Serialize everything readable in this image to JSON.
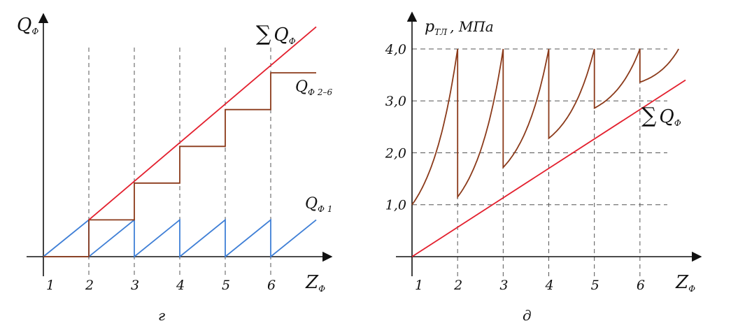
{
  "chart_data": [
    {
      "type": "line",
      "caption": "г",
      "ylabel": "Q",
      "ylabel_sub": "Ф",
      "xlabel": "Z",
      "xlabel_sub": "Ф",
      "categories": [
        "1",
        "2",
        "3",
        "4",
        "5",
        "6"
      ],
      "xlim": [
        1,
        7
      ],
      "ylim": [
        0,
        6.6
      ],
      "colors": {
        "sum": "#e3202e",
        "stair": "#8b3a1a",
        "saw": "#3f7fd6",
        "grid": "#555555"
      },
      "annotations": {
        "sum": {
          "sym": "∑",
          "label": "Q",
          "sub": "Ф"
        },
        "stair": {
          "label": "Q",
          "sub": "Ф 2–6"
        },
        "saw": {
          "label": "Q",
          "sub": "Ф 1"
        }
      },
      "series": [
        {
          "key": "sum",
          "values": [
            [
              2,
              1
            ],
            [
              7,
              6.25
            ]
          ]
        },
        {
          "key": "stair",
          "values": [
            [
              1,
              0
            ],
            [
              2,
              0
            ],
            [
              2,
              1
            ],
            [
              3,
              1
            ],
            [
              3,
              2
            ],
            [
              4,
              2
            ],
            [
              4,
              3
            ],
            [
              5,
              3
            ],
            [
              5,
              4
            ],
            [
              6,
              4
            ],
            [
              6,
              5
            ],
            [
              7,
              5
            ]
          ]
        },
        {
          "key": "saw",
          "values": [
            [
              1,
              0
            ],
            [
              2,
              1
            ],
            [
              2,
              0
            ],
            [
              3,
              1
            ],
            [
              3,
              0
            ],
            [
              4,
              1
            ],
            [
              4,
              0
            ],
            [
              5,
              1
            ],
            [
              5,
              0
            ],
            [
              6,
              1
            ],
            [
              6,
              0
            ],
            [
              7,
              1
            ]
          ]
        }
      ]
    },
    {
      "type": "line",
      "caption": "д",
      "ylabel": "p",
      "ylabel_sub": "ТЛ",
      "ylabel_unit": ", МПа",
      "xlabel": "Z",
      "xlabel_sub": "Ф",
      "categories": [
        "1",
        "2",
        "3",
        "4",
        "5",
        "6"
      ],
      "yticks": [
        "1,0",
        "2,0",
        "3,0",
        "4,0"
      ],
      "ytick_values": [
        1,
        2,
        3,
        4
      ],
      "xlim": [
        1,
        7
      ],
      "ylim": [
        0,
        4.7
      ],
      "colors": {
        "sum": "#e3202e",
        "pressure": "#8b3a1a",
        "grid": "#555555"
      },
      "annotations": {
        "sum": {
          "sym": "∑",
          "label": "Q",
          "sub": "Ф"
        }
      },
      "series": [
        {
          "key": "sum",
          "values": [
            [
              1,
              0
            ],
            [
              7,
              3.4
            ]
          ]
        },
        {
          "key": "pressure",
          "segments": [
            {
              "start": [
                1,
                1.0
              ],
              "end": [
                2,
                4.0
              ]
            },
            {
              "start": [
                2,
                1.15
              ],
              "end": [
                3,
                4.0
              ]
            },
            {
              "start": [
                3,
                1.72
              ],
              "end": [
                4,
                4.0
              ]
            },
            {
              "start": [
                4,
                2.28
              ],
              "end": [
                5,
                4.0
              ]
            },
            {
              "start": [
                5,
                2.86
              ],
              "end": [
                6,
                4.0
              ]
            },
            {
              "start": [
                6,
                3.36
              ],
              "end": [
                6.85,
                4.0
              ]
            }
          ]
        }
      ]
    }
  ]
}
